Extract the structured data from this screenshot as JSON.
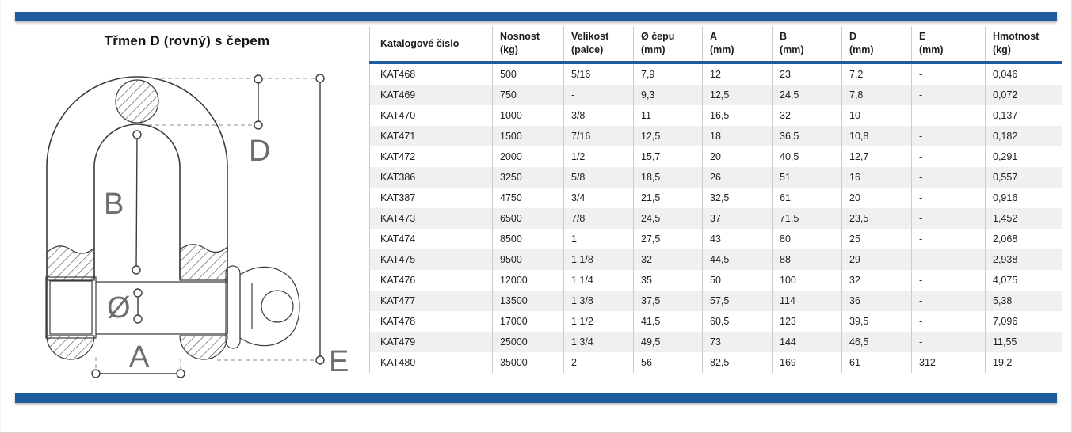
{
  "page": {
    "title": "Třmen D (rovný) s čepem"
  },
  "colors": {
    "accent_blue": "#1e5c9e",
    "row_stripe": "#f0f0f0"
  },
  "drawing": {
    "name": "d-shackle-with-pin-technical-drawing",
    "dimension_labels": {
      "d": "D",
      "b": "B",
      "diameter": "Ø",
      "a": "A",
      "e": "E"
    }
  },
  "table": {
    "columns": [
      "Katalogové číslo",
      "Nosnost\n(kg)",
      "Velikost\n(palce)",
      "Ø čepu\n(mm)",
      "A\n(mm)",
      "B\n(mm)",
      "D\n(mm)",
      "E\n(mm)",
      "Hmotnost\n(kg)"
    ],
    "rows": [
      [
        "KAT468",
        "500",
        "5/16",
        "7,9",
        "12",
        "23",
        "7,2",
        "-",
        "0,046"
      ],
      [
        "KAT469",
        "750",
        "-",
        "9,3",
        "12,5",
        "24,5",
        "7,8",
        "-",
        "0,072"
      ],
      [
        "KAT470",
        "1000",
        "3/8",
        "11",
        "16,5",
        "32",
        "10",
        "-",
        "0,137"
      ],
      [
        "KAT471",
        "1500",
        "7/16",
        "12,5",
        "18",
        "36,5",
        "10,8",
        "-",
        "0,182"
      ],
      [
        "KAT472",
        "2000",
        "1/2",
        "15,7",
        "20",
        "40,5",
        "12,7",
        "-",
        "0,291"
      ],
      [
        "KAT386",
        "3250",
        "5/8",
        "18,5",
        "26",
        "51",
        "16",
        "-",
        "0,557"
      ],
      [
        "KAT387",
        "4750",
        "3/4",
        "21,5",
        "32,5",
        "61",
        "20",
        "-",
        "0,916"
      ],
      [
        "KAT473",
        "6500",
        "7/8",
        "24,5",
        "37",
        "71,5",
        "23,5",
        "-",
        "1,452"
      ],
      [
        "KAT474",
        "8500",
        "1",
        "27,5",
        "43",
        "80",
        "25",
        "-",
        "2,068"
      ],
      [
        "KAT475",
        "9500",
        "1 1/8",
        "32",
        "44,5",
        "88",
        "29",
        "-",
        "2,938"
      ],
      [
        "KAT476",
        "12000",
        "1 1/4",
        "35",
        "50",
        "100",
        "32",
        "-",
        "4,075"
      ],
      [
        "KAT477",
        "13500",
        "1 3/8",
        "37,5",
        "57,5",
        "114",
        "36",
        "-",
        "5,38"
      ],
      [
        "KAT478",
        "17000",
        "1 1/2",
        "41,5",
        "60,5",
        "123",
        "39,5",
        "-",
        "7,096"
      ],
      [
        "KAT479",
        "25000",
        "1 3/4",
        "49,5",
        "73",
        "144",
        "46,5",
        "-",
        "11,55"
      ],
      [
        "KAT480",
        "35000",
        "2",
        "56",
        "82,5",
        "169",
        "61",
        "312",
        "19,2"
      ]
    ]
  }
}
